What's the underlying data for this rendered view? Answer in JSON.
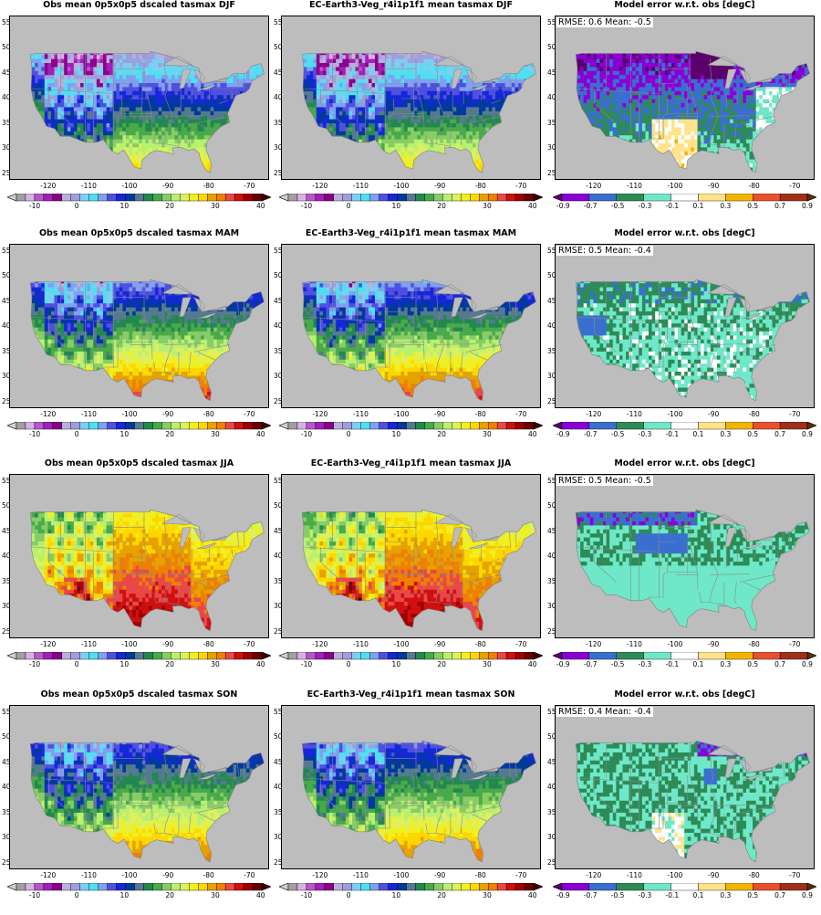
{
  "columns": [
    "obs",
    "model",
    "error"
  ],
  "panels": [
    {
      "row": 0,
      "col": 0,
      "title": "Obs mean 0p5x0p5 dscaled tasmax DJF",
      "type": "abs",
      "season": "DJF"
    },
    {
      "row": 0,
      "col": 1,
      "title": "EC-Earth3-Veg_r4i1p1f1 mean tasmax DJF",
      "type": "abs",
      "season": "DJF"
    },
    {
      "row": 0,
      "col": 2,
      "title": "Model error w.r.t. obs [degC]",
      "type": "err",
      "stats": "RMSE: 0.6  Mean: -0.5"
    },
    {
      "row": 1,
      "col": 0,
      "title": "Obs mean 0p5x0p5 dscaled tasmax MAM",
      "type": "abs",
      "season": "MAM"
    },
    {
      "row": 1,
      "col": 1,
      "title": "EC-Earth3-Veg_r4i1p1f1 mean tasmax MAM",
      "type": "abs",
      "season": "MAM"
    },
    {
      "row": 1,
      "col": 2,
      "title": "Model error w.r.t. obs [degC]",
      "type": "err",
      "stats": "RMSE: 0.5  Mean: -0.4"
    },
    {
      "row": 2,
      "col": 0,
      "title": "Obs mean 0p5x0p5 dscaled tasmax JJA",
      "type": "abs",
      "season": "JJA"
    },
    {
      "row": 2,
      "col": 1,
      "title": "EC-Earth3-Veg_r4i1p1f1 mean tasmax JJA",
      "type": "abs",
      "season": "JJA"
    },
    {
      "row": 2,
      "col": 2,
      "title": "Model error w.r.t. obs [degC]",
      "type": "err",
      "stats": "RMSE: 0.5  Mean: -0.5"
    },
    {
      "row": 3,
      "col": 0,
      "title": "Obs mean 0p5x0p5 dscaled tasmax SON",
      "type": "abs",
      "season": "SON"
    },
    {
      "row": 3,
      "col": 1,
      "title": "EC-Earth3-Veg_r4i1p1f1 mean tasmax SON",
      "type": "abs",
      "season": "SON"
    },
    {
      "row": 3,
      "col": 2,
      "title": "Model error w.r.t. obs [degC]",
      "type": "err",
      "stats": "RMSE: 0.4  Mean: -0.4"
    }
  ],
  "axes": {
    "lon_ticks": [
      "-120",
      "-110",
      "-100",
      "-90",
      "-80",
      "-70"
    ],
    "lat_ticks": [
      "55",
      "50",
      "45",
      "40",
      "35",
      "30",
      "25"
    ]
  },
  "abs_colorbar": {
    "labels": [
      "-10",
      "0",
      "10",
      "20",
      "30",
      "40"
    ],
    "colors": [
      "#a0a0a0",
      "#d8b3e0",
      "#bb55cc",
      "#a020b8",
      "#8c008c",
      "#b8b0d8",
      "#9e9ee0",
      "#7dcff0",
      "#4ee0f0",
      "#80a0f0",
      "#5050e0",
      "#1428d8",
      "#003a9a",
      "#557a90",
      "#228850",
      "#48aa48",
      "#88cc68",
      "#b8f070",
      "#dcf060",
      "#f0f020",
      "#ffd700",
      "#e6a200",
      "#f08000",
      "#e84848",
      "#d01010",
      "#a00000",
      "#6a0000"
    ],
    "over_color": "#3a0000",
    "under_color": "#d0d0d0"
  },
  "err_colorbar": {
    "labels": [
      "-0.9",
      "-0.7",
      "-0.5",
      "-0.3",
      "-0.1",
      "0.1",
      "0.3",
      "0.5",
      "0.7",
      "0.9"
    ],
    "colors": [
      "#8a00d4",
      "#3a6fd0",
      "#2e8b57",
      "#6ee8c8",
      "#ffffff",
      "#ffe38a",
      "#f2b400",
      "#e8502e",
      "#a0301a"
    ],
    "over_color": "#5a2c10",
    "under_color": "#5a006a"
  }
}
